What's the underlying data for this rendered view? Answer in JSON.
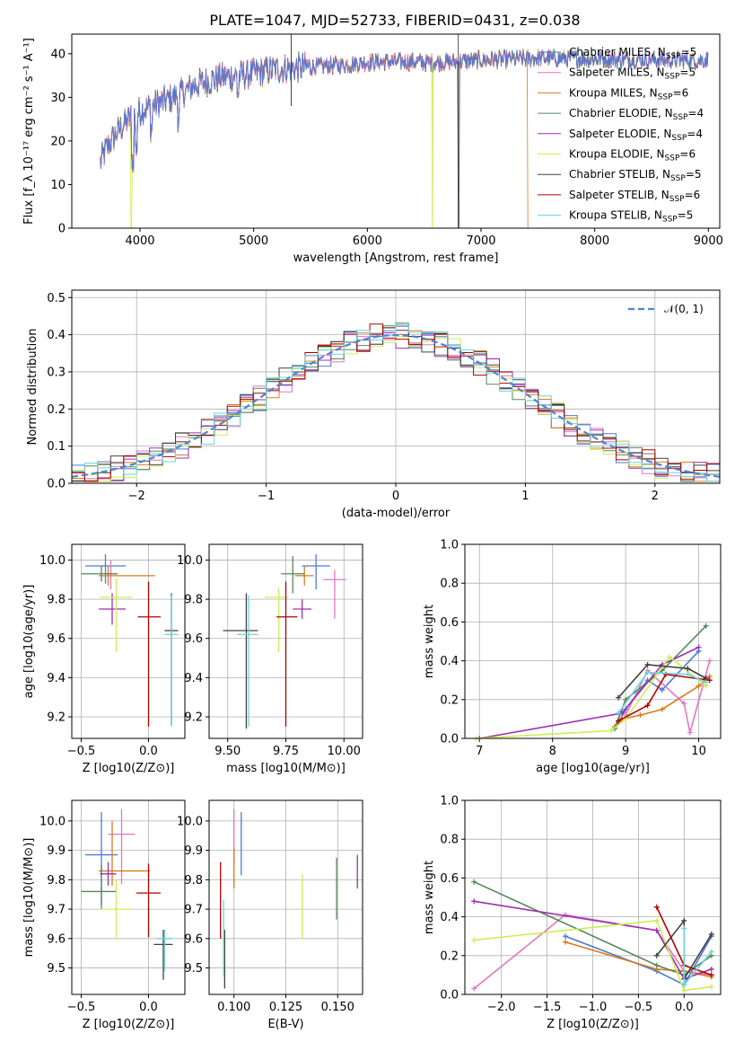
{
  "figure": {
    "title": "PLATE=1047, MJD=52733, FIBERID=0431, z=0.038"
  },
  "legend_gaussian": "𝒩(0, 1)",
  "colors": {
    "Chabrier MILES": "#4e79d8",
    "Salpeter MILES": "#e377c2",
    "Kroupa MILES": "#d97b1e",
    "Chabrier ELODIE": "#55875a",
    "Salpeter ELODIE": "#9b30b0",
    "Kroupa ELODIE": "#ccee55",
    "Chabrier STELIB": "#404040",
    "Salpeter STELIB": "#b00000",
    "Kroupa STELIB": "#6dd3da",
    "gaussian": "#4a86cf"
  },
  "legend_entries": [
    {
      "model": "Chabrier MILES",
      "prefix": "Chabrier MILES, N",
      "sub": "SSP",
      "suffix": "=5"
    },
    {
      "model": "Salpeter MILES",
      "prefix": "Salpeter MILES, N",
      "sub": "SSP",
      "suffix": "=5"
    },
    {
      "model": "Kroupa MILES",
      "prefix": "Kroupa MILES, N",
      "sub": "SSP",
      "suffix": "=6"
    },
    {
      "model": "Chabrier ELODIE",
      "prefix": "Chabrier ELODIE, N",
      "sub": "SSP",
      "suffix": "=4"
    },
    {
      "model": "Salpeter ELODIE",
      "prefix": "Salpeter ELODIE, N",
      "sub": "SSP",
      "suffix": "=4"
    },
    {
      "model": "Kroupa ELODIE",
      "prefix": "Kroupa ELODIE, N",
      "sub": "SSP",
      "suffix": "=6"
    },
    {
      "model": "Chabrier STELIB",
      "prefix": "Chabrier STELIB, N",
      "sub": "SSP",
      "suffix": "=5"
    },
    {
      "model": "Salpeter STELIB",
      "prefix": "Salpeter STELIB, N",
      "sub": "SSP",
      "suffix": "=6"
    },
    {
      "model": "Kroupa STELIB",
      "prefix": "Kroupa STELIB, N",
      "sub": "SSP",
      "suffix": "=5"
    }
  ],
  "chart_data": [
    {
      "id": "spectrum",
      "type": "line",
      "title": "PLATE=1047, MJD=52733, FIBERID=0431, z=0.038",
      "xlabel": "wavelength [Angstrom, rest frame]",
      "ylabel": "Flux [f_λ 10⁻¹⁷ erg cm⁻² s⁻¹ A⁻¹]",
      "xlim": [
        3400,
        9100
      ],
      "ylim": [
        0,
        44.5
      ],
      "xticks": [
        4000,
        5000,
        6000,
        7000,
        8000,
        9000
      ],
      "yticks": [
        0,
        10,
        20,
        30,
        40
      ],
      "grid": false,
      "legend_loc": "right",
      "continuum": {
        "x": [
          3650,
          3700,
          3800,
          3900,
          4000,
          4100,
          4200,
          4300,
          4500,
          4700,
          5000,
          5200,
          5500,
          5800,
          6000,
          6300,
          6600,
          7000,
          7500,
          8000,
          8500,
          9000
        ],
        "y": [
          15,
          18,
          22,
          25,
          27,
          28,
          29,
          30,
          33,
          34.5,
          35.5,
          36.5,
          37,
          37.5,
          38,
          38.2,
          38,
          38.5,
          39,
          38.8,
          38.6,
          38.5
        ]
      },
      "dropouts": [
        {
          "model": "Kroupa ELODIE",
          "x": [
            3920,
            6570
          ],
          "y_after": 0
        },
        {
          "model": "Kroupa MILES",
          "x": [
            7410
          ],
          "y_after": 0
        },
        {
          "model": "Chabrier STELIB",
          "x": [
            6800
          ],
          "y_after": 0
        }
      ]
    },
    {
      "id": "residual-histogram",
      "type": "histogram",
      "xlabel": "(data-model)/error",
      "ylabel": "Normed distribution",
      "xlim": [
        -2.5,
        2.5
      ],
      "ylim": [
        0,
        0.52
      ],
      "xticks": [
        -2,
        -1,
        0,
        1,
        2
      ],
      "yticks": [
        0,
        0.1,
        0.2,
        0.3,
        0.4,
        0.5
      ],
      "grid": true,
      "bin_width": 0.1,
      "bin_start": -2.5,
      "legend_loc": "top-right",
      "gaussian": {
        "mean": 0,
        "sigma": 1
      }
    },
    {
      "id": "age-vs-Z",
      "type": "errorbar",
      "xlabel": "Z [log10(Z/Z⊙)]",
      "ylabel": "age [log10(age/yr)]",
      "xlim": [
        -0.57,
        0.27
      ],
      "ylim": [
        9.09,
        10.08
      ],
      "xticks": [
        -0.5,
        0.0
      ],
      "yticks": [
        9.2,
        9.4,
        9.6,
        9.8,
        10.0
      ],
      "grid": true,
      "points": [
        {
          "model": "Chabrier MILES",
          "x": -0.32,
          "xerr": [
            0.15,
            0.15
          ],
          "y": 9.97,
          "yerr": [
            0.09,
            0.06
          ]
        },
        {
          "model": "Salpeter MILES",
          "x": -0.28,
          "xerr": [
            0.05,
            0.05
          ],
          "y": 9.93,
          "yerr": [
            0.08,
            0.07
          ]
        },
        {
          "model": "Kroupa MILES",
          "x": -0.3,
          "xerr": [
            0.07,
            0.35
          ],
          "y": 9.92,
          "yerr": [
            0.05,
            0.05
          ]
        },
        {
          "model": "Chabrier ELODIE",
          "x": -0.35,
          "xerr": [
            0.15,
            0.12
          ],
          "y": 9.93,
          "yerr": [
            0.04,
            0.04
          ]
        },
        {
          "model": "Salpeter ELODIE",
          "x": -0.27,
          "xerr": [
            0.1,
            0.1
          ],
          "y": 9.75,
          "yerr": [
            0.08,
            0.08
          ]
        },
        {
          "model": "Kroupa ELODIE",
          "x": -0.24,
          "xerr": [
            0.12,
            0.12
          ],
          "y": 9.81,
          "yerr": [
            0.28,
            0.1
          ]
        },
        {
          "model": "Chabrier STELIB",
          "x": 0.17,
          "xerr": [
            0.05,
            0.05
          ],
          "y": 9.64,
          "yerr": [
            0.48,
            0.19
          ]
        },
        {
          "model": "Salpeter STELIB",
          "x": 0.0,
          "xerr": [
            0.08,
            0.09
          ],
          "y": 9.71,
          "yerr": [
            0.56,
            0.18
          ]
        },
        {
          "model": "Kroupa STELIB",
          "x": 0.17,
          "xerr": [
            0.05,
            0.05
          ],
          "y": 9.62,
          "yerr": [
            0.47,
            0.2
          ]
        }
      ]
    },
    {
      "id": "age-vs-mass",
      "type": "errorbar",
      "xlabel": "mass [log10(M/M⊙)]",
      "ylabel": "",
      "xlim": [
        9.42,
        10.08
      ],
      "ylim": [
        9.09,
        10.08
      ],
      "xticks": [
        9.5,
        9.75,
        10.0
      ],
      "yticks": [
        9.2,
        9.4,
        9.6,
        9.8,
        10.0
      ],
      "grid": true,
      "points": [
        {
          "model": "Chabrier MILES",
          "x": 9.88,
          "xerr": [
            0.06,
            0.06
          ],
          "y": 9.97,
          "yerr": [
            0.12,
            0.06
          ]
        },
        {
          "model": "Salpeter MILES",
          "x": 9.96,
          "xerr": [
            0.05,
            0.05
          ],
          "y": 9.9,
          "yerr": [
            0.2,
            0.05
          ]
        },
        {
          "model": "Kroupa MILES",
          "x": 9.83,
          "xerr": [
            0.04,
            0.04
          ],
          "y": 9.92,
          "yerr": [
            0.05,
            0.05
          ]
        },
        {
          "model": "Chabrier ELODIE",
          "x": 9.78,
          "xerr": [
            0.05,
            0.05
          ],
          "y": 9.93,
          "yerr": [
            0.1,
            0.09
          ]
        },
        {
          "model": "Salpeter ELODIE",
          "x": 9.82,
          "xerr": [
            0.04,
            0.04
          ],
          "y": 9.75,
          "yerr": [
            0.05,
            0.05
          ]
        },
        {
          "model": "Kroupa ELODIE",
          "x": 9.72,
          "xerr": [
            0.06,
            0.04
          ],
          "y": 9.81,
          "yerr": [
            0.28,
            0.05
          ]
        },
        {
          "model": "Chabrier STELIB",
          "x": 9.58,
          "xerr": [
            0.1,
            0.05
          ],
          "y": 9.64,
          "yerr": [
            0.5,
            0.19
          ]
        },
        {
          "model": "Salpeter STELIB",
          "x": 9.75,
          "xerr": [
            0.04,
            0.05
          ],
          "y": 9.71,
          "yerr": [
            0.56,
            0.18
          ]
        },
        {
          "model": "Kroupa STELIB",
          "x": 9.59,
          "xerr": [
            0.05,
            0.04
          ],
          "y": 9.62,
          "yerr": [
            0.47,
            0.2
          ]
        }
      ]
    },
    {
      "id": "mass-weight-vs-age",
      "type": "line",
      "xlabel": "age [log10(age/yr)]",
      "ylabel": "mass weight",
      "xlim": [
        6.8,
        10.3
      ],
      "ylim": [
        0,
        1.0
      ],
      "xticks": [
        7,
        8,
        9,
        10
      ],
      "yticks": [
        0.0,
        0.2,
        0.4,
        0.6,
        0.8,
        1.0
      ],
      "grid": true,
      "series": [
        {
          "model": "Chabrier MILES",
          "x": [
            8.9,
            9.0,
            9.3,
            9.5,
            10.0
          ],
          "y": [
            0.08,
            0.15,
            0.3,
            0.25,
            0.45
          ]
        },
        {
          "model": "Salpeter MILES",
          "x": [
            9.0,
            9.3,
            9.8,
            9.88,
            10.15
          ],
          "y": [
            0.12,
            0.35,
            0.18,
            0.03,
            0.4
          ]
        },
        {
          "model": "Kroupa MILES",
          "x": [
            8.85,
            8.95,
            9.2,
            9.5,
            10.0,
            10.15
          ],
          "y": [
            0.06,
            0.1,
            0.12,
            0.15,
            0.27,
            0.32
          ]
        },
        {
          "model": "Chabrier ELODIE",
          "x": [
            8.85,
            9.0,
            9.5,
            10.1
          ],
          "y": [
            0.05,
            0.2,
            0.35,
            0.58
          ]
        },
        {
          "model": "Salpeter ELODIE",
          "x": [
            7.0,
            8.95,
            9.5,
            10.0
          ],
          "y": [
            0.0,
            0.13,
            0.38,
            0.47
          ]
        },
        {
          "model": "Kroupa ELODIE",
          "x": [
            6.95,
            8.8,
            9.0,
            9.6,
            10.1
          ],
          "y": [
            0.0,
            0.04,
            0.1,
            0.42,
            0.27
          ]
        },
        {
          "model": "Chabrier STELIB",
          "x": [
            8.9,
            9.3,
            9.85,
            10.1
          ],
          "y": [
            0.21,
            0.38,
            0.36,
            0.31
          ]
        },
        {
          "model": "Salpeter STELIB",
          "x": [
            8.9,
            9.3,
            9.55,
            10.15
          ],
          "y": [
            0.09,
            0.17,
            0.33,
            0.3
          ]
        },
        {
          "model": "Kroupa STELIB",
          "x": [
            8.9,
            9.3,
            9.85,
            10.1
          ],
          "y": [
            0.13,
            0.34,
            0.33,
            0.29
          ]
        }
      ]
    },
    {
      "id": "mass-vs-Z",
      "type": "errorbar",
      "xlabel": "Z [log10(Z/Z⊙)]",
      "ylabel": "mass [log10(M/M⊙)]",
      "xlim": [
        -0.57,
        0.27
      ],
      "ylim": [
        9.41,
        10.07
      ],
      "xticks": [
        -0.5,
        0.0
      ],
      "yticks": [
        9.5,
        9.6,
        9.7,
        9.8,
        9.9,
        10.0
      ],
      "grid": true,
      "points": [
        {
          "model": "Chabrier MILES",
          "x": -0.35,
          "xerr": [
            0.12,
            0.12
          ],
          "y": 9.885,
          "yerr": [
            0.17,
            0.145
          ]
        },
        {
          "model": "Salpeter MILES",
          "x": -0.2,
          "xerr": [
            0.1,
            0.1
          ],
          "y": 9.955,
          "yerr": [
            0.17,
            0.085
          ]
        },
        {
          "model": "Kroupa MILES",
          "x": -0.27,
          "xerr": [
            0.1,
            0.28
          ],
          "y": 9.83,
          "yerr": [
            0.05,
            0.17
          ]
        },
        {
          "model": "Chabrier ELODIE",
          "x": -0.35,
          "xerr": [
            0.15,
            0.11
          ],
          "y": 9.76,
          "yerr": [
            0.06,
            0.09
          ]
        },
        {
          "model": "Salpeter ELODIE",
          "x": -0.3,
          "xerr": [
            0.06,
            0.06
          ],
          "y": 9.82,
          "yerr": [
            0.04,
            0.04
          ]
        },
        {
          "model": "Kroupa ELODIE",
          "x": -0.24,
          "xerr": [
            0.12,
            0.12
          ],
          "y": 9.7,
          "yerr": [
            0.1,
            0.1
          ]
        },
        {
          "model": "Chabrier STELIB",
          "x": 0.11,
          "xerr": [
            0.07,
            0.07
          ],
          "y": 9.58,
          "yerr": [
            0.12,
            0.05
          ]
        },
        {
          "model": "Salpeter STELIB",
          "x": 0.0,
          "xerr": [
            0.09,
            0.09
          ],
          "y": 9.755,
          "yerr": [
            0.15,
            0.1
          ]
        },
        {
          "model": "Kroupa STELIB",
          "x": 0.12,
          "xerr": [
            0.06,
            0.06
          ],
          "y": 9.6,
          "yerr": [
            0.11,
            0.03
          ]
        }
      ]
    },
    {
      "id": "mass-vs-ebv",
      "type": "errorbar",
      "xlabel": "E(B-V)",
      "ylabel": "",
      "xlim": [
        0.088,
        0.162
      ],
      "ylim": [
        9.41,
        10.07
      ],
      "xticks": [
        0.1,
        0.125,
        0.15
      ],
      "yticks": [
        9.5,
        9.6,
        9.7,
        9.8,
        9.9,
        10.0
      ],
      "grid": true,
      "points": [
        {
          "model": "Chabrier MILES",
          "x": 0.1035,
          "xerr": [
            0,
            0
          ],
          "y": 9.885,
          "yerr": [
            0.07,
            0.145
          ]
        },
        {
          "model": "Salpeter MILES",
          "x": 0.1,
          "xerr": [
            0,
            0
          ],
          "y": 9.955,
          "yerr": [
            0.1,
            0.085
          ]
        },
        {
          "model": "Kroupa MILES",
          "x": 0.1,
          "xerr": [
            0,
            0
          ],
          "y": 9.84,
          "yerr": [
            0.07,
            0.07
          ]
        },
        {
          "model": "Chabrier ELODIE",
          "x": 0.1495,
          "xerr": [
            0,
            0
          ],
          "y": 9.765,
          "yerr": [
            0.1,
            0.11
          ]
        },
        {
          "model": "Salpeter ELODIE",
          "x": 0.1595,
          "xerr": [
            0,
            0
          ],
          "y": 9.825,
          "yerr": [
            0.055,
            0.06
          ]
        },
        {
          "model": "Kroupa ELODIE",
          "x": 0.133,
          "xerr": [
            0,
            0
          ],
          "y": 9.71,
          "yerr": [
            0.11,
            0.11
          ]
        },
        {
          "model": "Chabrier STELIB",
          "x": 0.0955,
          "xerr": [
            0,
            0
          ],
          "y": 9.58,
          "yerr": [
            0.15,
            0.05
          ]
        },
        {
          "model": "Salpeter STELIB",
          "x": 0.0935,
          "xerr": [
            0,
            0
          ],
          "y": 9.73,
          "yerr": [
            0.13,
            0.13
          ]
        },
        {
          "model": "Kroupa STELIB",
          "x": 0.095,
          "xerr": [
            0,
            0
          ],
          "y": 9.6,
          "yerr": [
            0.13,
            0.13
          ]
        }
      ]
    },
    {
      "id": "mass-weight-vs-Z",
      "type": "line",
      "xlabel": "Z [log10(Z/Z⊙)]",
      "ylabel": "mass weight",
      "xlim": [
        -2.4,
        0.4
      ],
      "ylim": [
        0,
        1.0
      ],
      "xticks": [
        -2.0,
        -1.5,
        -1.0,
        -0.5,
        0.0
      ],
      "yticks": [
        0.0,
        0.2,
        0.4,
        0.6,
        0.8,
        1.0
      ],
      "grid": true,
      "series": [
        {
          "model": "Chabrier MILES",
          "x": [
            -1.3,
            -0.3,
            0.0,
            0.3
          ],
          "y": [
            0.3,
            0.12,
            0.05,
            0.3
          ]
        },
        {
          "model": "Salpeter MILES",
          "x": [
            -2.3,
            -1.3,
            -0.3,
            0.0,
            0.3
          ],
          "y": [
            0.03,
            0.41,
            0.33,
            0.12,
            0.1
          ]
        },
        {
          "model": "Kroupa MILES",
          "x": [
            -1.3,
            -0.3,
            0.0,
            0.3
          ],
          "y": [
            0.27,
            0.13,
            0.12,
            0.09
          ]
        },
        {
          "model": "Chabrier ELODIE",
          "x": [
            -2.3,
            -0.3,
            0.0,
            0.3
          ],
          "y": [
            0.58,
            0.15,
            0.1,
            0.2
          ]
        },
        {
          "model": "Salpeter ELODIE",
          "x": [
            -2.3,
            -0.3,
            0.0,
            0.3
          ],
          "y": [
            0.48,
            0.33,
            0.08,
            0.13
          ]
        },
        {
          "model": "Kroupa ELODIE",
          "x": [
            -2.3,
            -0.3,
            0.0,
            0.3
          ],
          "y": [
            0.28,
            0.38,
            0.02,
            0.04
          ]
        },
        {
          "model": "Chabrier STELIB",
          "x": [
            -0.3,
            0.0,
            0.0,
            0.3
          ],
          "y": [
            0.2,
            0.38,
            0.08,
            0.31
          ]
        },
        {
          "model": "Salpeter STELIB",
          "x": [
            -0.3,
            0.0,
            0.3
          ],
          "y": [
            0.45,
            0.15,
            0.1
          ]
        },
        {
          "model": "Kroupa STELIB",
          "x": [
            0.0,
            0.0,
            0.3
          ],
          "y": [
            0.34,
            0.05,
            0.22
          ]
        }
      ]
    }
  ]
}
